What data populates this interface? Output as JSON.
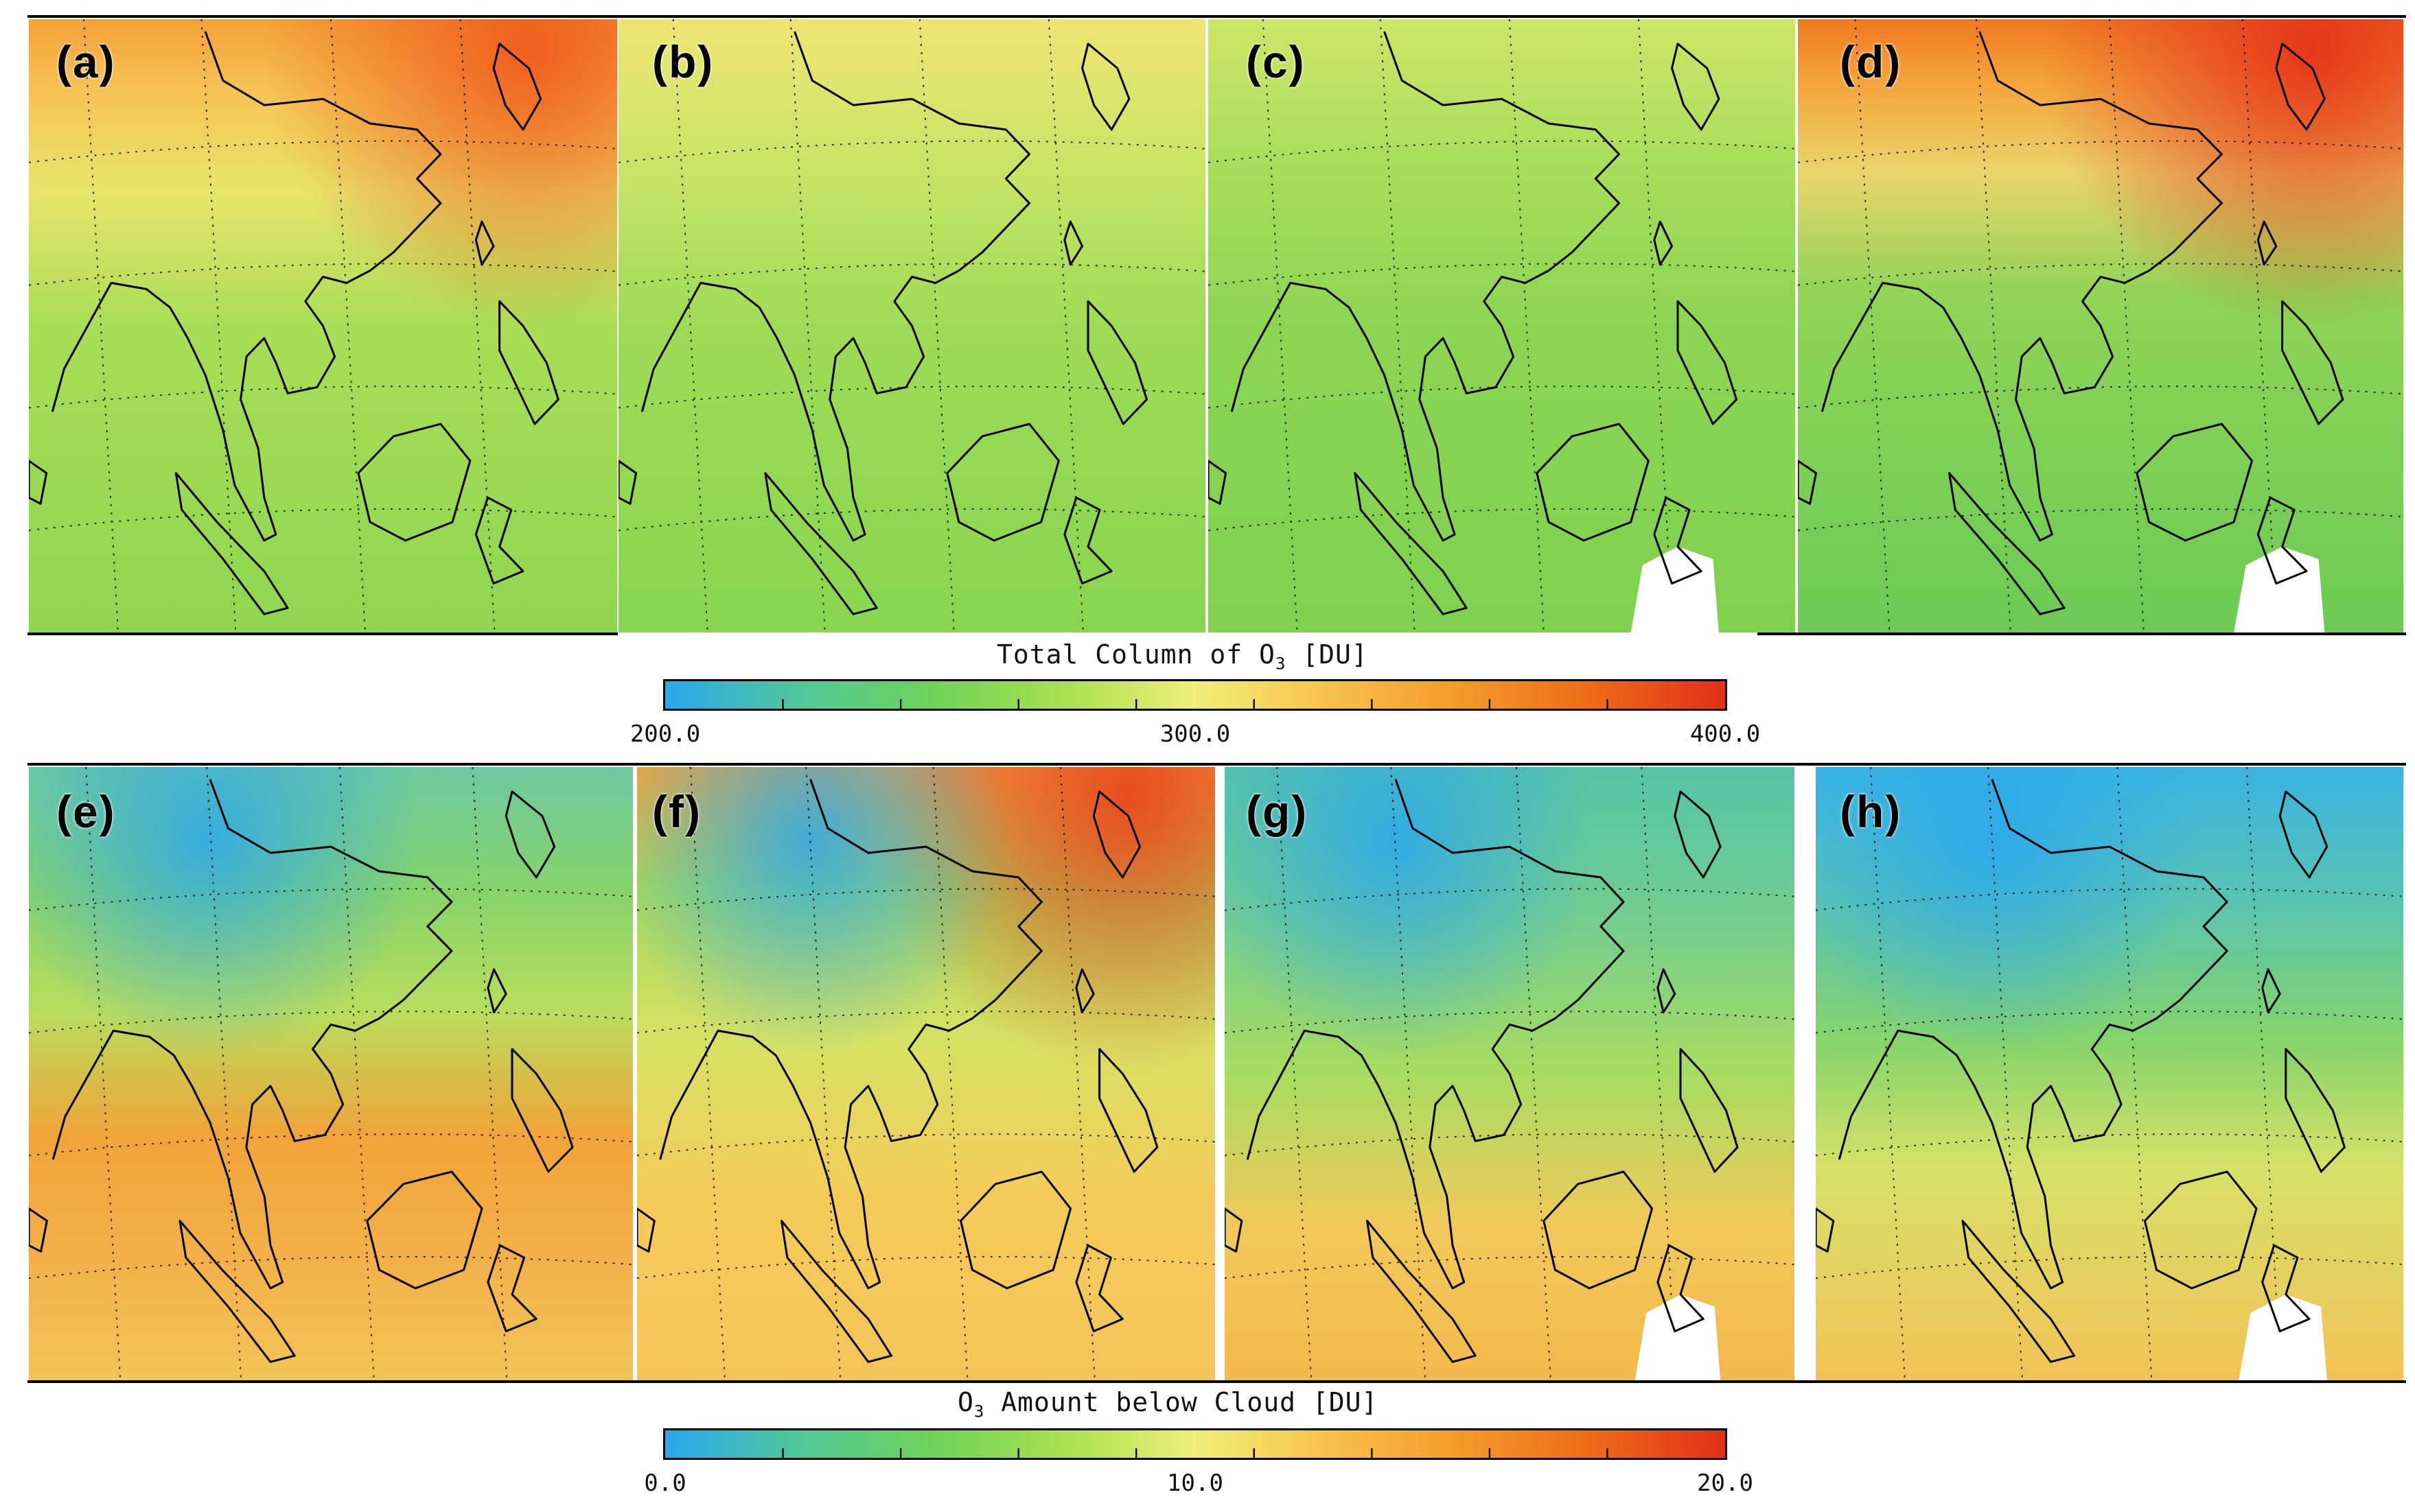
{
  "row1": {
    "panels": [
      {
        "label": "(a)"
      },
      {
        "label": "(b)"
      },
      {
        "label": "(c)"
      },
      {
        "label": "(d)"
      }
    ],
    "colorbar": {
      "title_prefix": "Total Column of O",
      "title_sub": "3",
      "title_suffix": " [DU]",
      "ticks": [
        "200.0",
        "300.0",
        "400.0"
      ],
      "values": [
        200.0,
        300.0,
        400.0
      ]
    }
  },
  "row2": {
    "panels": [
      {
        "label": "(e)"
      },
      {
        "label": "(f)"
      },
      {
        "label": "(g)"
      },
      {
        "label": "(h)"
      }
    ],
    "colorbar": {
      "title_prefix": "O",
      "title_sub": "3",
      "title_suffix": " Amount below Cloud [DU]",
      "ticks": [
        "0.0",
        "10.0",
        "20.0"
      ],
      "values": [
        0.0,
        10.0,
        20.0
      ]
    }
  },
  "colormap": [
    "#2aa7ee",
    "#4fc79a",
    "#6ed25a",
    "#a8e050",
    "#f0ef78",
    "#f7c24a",
    "#f39a28",
    "#ee6a18",
    "#e0301a"
  ],
  "colors": {
    "background": "#ffffff",
    "coastline": "#000000"
  }
}
